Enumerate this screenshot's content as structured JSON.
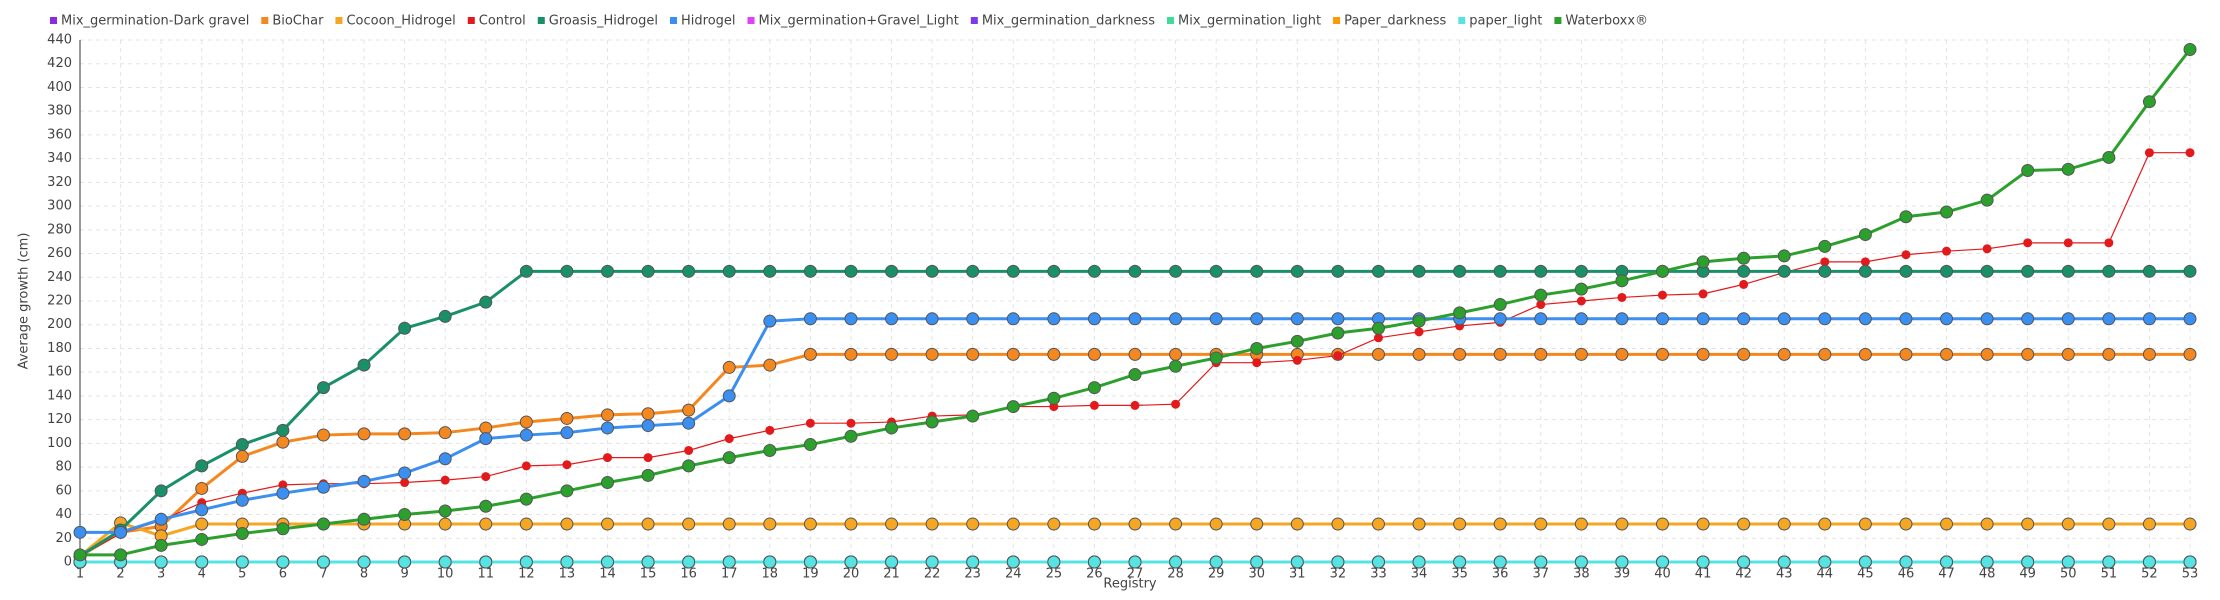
{
  "chart_data": {
    "type": "line",
    "xlabel": "Registry",
    "ylabel": "Average growth (cm)",
    "categories": [
      "1",
      "2",
      "3",
      "4",
      "5",
      "6",
      "7",
      "8",
      "9",
      "10",
      "11",
      "12",
      "13",
      "14",
      "15",
      "16",
      "17",
      "18",
      "19",
      "20",
      "21",
      "22",
      "23",
      "24",
      "25",
      "26",
      "27",
      "28",
      "29",
      "30",
      "31",
      "32",
      "33",
      "34",
      "35",
      "36",
      "37",
      "38",
      "39",
      "40",
      "41",
      "42",
      "43",
      "44",
      "45",
      "46",
      "47",
      "48",
      "49",
      "50",
      "51",
      "52",
      "53"
    ],
    "ylim": [
      0,
      440
    ],
    "yticks": [
      0,
      20,
      40,
      60,
      80,
      100,
      120,
      140,
      160,
      180,
      200,
      220,
      240,
      260,
      280,
      300,
      320,
      340,
      360,
      380,
      400,
      420,
      440
    ],
    "grid": true,
    "legend": "top",
    "series": [
      {
        "name": "Mix_germination-Dark gravel",
        "color": "#8a2be2",
        "values": [
          0,
          0,
          0,
          0,
          0,
          0,
          0,
          0,
          0,
          0,
          0,
          0,
          0,
          0,
          0,
          0,
          0,
          0,
          0,
          0,
          0,
          0,
          0,
          0,
          0,
          0,
          0,
          0,
          0,
          0,
          0,
          0,
          0,
          0,
          0,
          0,
          0,
          0,
          0,
          0,
          0,
          0,
          0,
          0,
          0,
          0,
          0,
          0,
          0,
          0,
          0,
          0,
          0
        ]
      },
      {
        "name": "BioChar",
        "color": "#f5871f",
        "values": [
          5,
          25,
          30,
          62,
          89,
          101,
          107,
          108,
          108,
          109,
          113,
          118,
          121,
          124,
          125,
          128,
          164,
          166,
          175,
          175,
          175,
          175,
          175,
          175,
          175,
          175,
          175,
          175,
          175,
          175,
          175,
          175,
          175,
          175,
          175,
          175,
          175,
          175,
          175,
          175,
          175,
          175,
          175,
          175,
          175,
          175,
          175,
          175,
          175,
          175,
          175,
          175,
          175
        ]
      },
      {
        "name": "Cocoon_Hidrogel",
        "color": "#f5a623",
        "values": [
          5,
          33,
          22,
          32,
          32,
          32,
          32,
          32,
          32,
          32,
          32,
          32,
          32,
          32,
          32,
          32,
          32,
          32,
          32,
          32,
          32,
          32,
          32,
          32,
          32,
          32,
          32,
          32,
          32,
          32,
          32,
          32,
          32,
          32,
          32,
          32,
          32,
          32,
          32,
          32,
          32,
          32,
          32,
          32,
          32,
          32,
          32,
          32,
          32,
          32,
          32,
          32,
          32
        ]
      },
      {
        "name": "Control",
        "color": "#e31a1c",
        "values": [
          5,
          24,
          35,
          50,
          58,
          65,
          66,
          66,
          67,
          69,
          72,
          81,
          82,
          88,
          88,
          94,
          104,
          111,
          117,
          117,
          118,
          123,
          124,
          131,
          131,
          132,
          132,
          133,
          168,
          168,
          170,
          174,
          189,
          194,
          199,
          202,
          217,
          220,
          223,
          225,
          226,
          234,
          244,
          253,
          253,
          259,
          262,
          264,
          269,
          269,
          269,
          345,
          345
        ]
      },
      {
        "name": "Groasis_Hidrogel",
        "color": "#1a9068",
        "values": [
          5,
          27,
          60,
          81,
          99,
          111,
          147,
          166,
          197,
          207,
          219,
          245,
          245,
          245,
          245,
          245,
          245,
          245,
          245,
          245,
          245,
          245,
          245,
          245,
          245,
          245,
          245,
          245,
          245,
          245,
          245,
          245,
          245,
          245,
          245,
          245,
          245,
          245,
          245,
          245,
          245,
          245,
          245,
          245,
          245,
          245,
          245,
          245,
          245,
          245,
          245,
          245,
          245
        ]
      },
      {
        "name": "Hidrogel",
        "color": "#3b8ff0",
        "values": [
          25,
          25,
          36,
          44,
          52,
          58,
          63,
          68,
          75,
          87,
          104,
          107,
          109,
          113,
          115,
          117,
          140,
          203,
          205,
          205,
          205,
          205,
          205,
          205,
          205,
          205,
          205,
          205,
          205,
          205,
          205,
          205,
          205,
          205,
          205,
          205,
          205,
          205,
          205,
          205,
          205,
          205,
          205,
          205,
          205,
          205,
          205,
          205,
          205,
          205,
          205,
          205,
          205
        ]
      },
      {
        "name": "Mix_germination+Gravel_Light",
        "color": "#e040fb",
        "values": [
          0,
          0,
          0,
          0,
          0,
          0,
          0,
          0,
          0,
          0,
          0,
          0,
          0,
          0,
          0,
          0,
          0,
          0,
          0,
          0,
          0,
          0,
          0,
          0,
          0,
          0,
          0,
          0,
          0,
          0,
          0,
          0,
          0,
          0,
          0,
          0,
          0,
          0,
          0,
          0,
          0,
          0,
          0,
          0,
          0,
          0,
          0,
          0,
          0,
          0,
          0,
          0,
          0
        ]
      },
      {
        "name": "Mix_germination_darkness",
        "color": "#7c3aed",
        "values": [
          0,
          0,
          0,
          0,
          0,
          0,
          0,
          0,
          0,
          0,
          0,
          0,
          0,
          0,
          0,
          0,
          0,
          0,
          0,
          0,
          0,
          0,
          0,
          0,
          0,
          0,
          0,
          0,
          0,
          0,
          0,
          0,
          0,
          0,
          0,
          0,
          0,
          0,
          0,
          0,
          0,
          0,
          0,
          0,
          0,
          0,
          0,
          0,
          0,
          0,
          0,
          0,
          0
        ]
      },
      {
        "name": "Mix_germination_light",
        "color": "#3ddc97",
        "values": [
          0,
          0,
          0,
          0,
          0,
          0,
          0,
          0,
          0,
          0,
          0,
          0,
          0,
          0,
          0,
          0,
          0,
          0,
          0,
          0,
          0,
          0,
          0,
          0,
          0,
          0,
          0,
          0,
          0,
          0,
          0,
          0,
          0,
          0,
          0,
          0,
          0,
          0,
          0,
          0,
          0,
          0,
          0,
          0,
          0,
          0,
          0,
          0,
          0,
          0,
          0,
          0,
          0
        ]
      },
      {
        "name": "Paper_darkness",
        "color": "#ff9900",
        "values": [
          0,
          0,
          0,
          0,
          0,
          0,
          0,
          0,
          0,
          0,
          0,
          0,
          0,
          0,
          0,
          0,
          0,
          0,
          0,
          0,
          0,
          0,
          0,
          0,
          0,
          0,
          0,
          0,
          0,
          0,
          0,
          0,
          0,
          0,
          0,
          0,
          0,
          0,
          0,
          0,
          0,
          0,
          0,
          0,
          0,
          0,
          0,
          0,
          0,
          0,
          0,
          0,
          0
        ]
      },
      {
        "name": "paper_light",
        "color": "#55e3e3",
        "values": [
          0,
          0,
          0,
          0,
          0,
          0,
          0,
          0,
          0,
          0,
          0,
          0,
          0,
          0,
          0,
          0,
          0,
          0,
          0,
          0,
          0,
          0,
          0,
          0,
          0,
          0,
          0,
          0,
          0,
          0,
          0,
          0,
          0,
          0,
          0,
          0,
          0,
          0,
          0,
          0,
          0,
          0,
          0,
          0,
          0,
          0,
          0,
          0,
          0,
          0,
          0,
          0,
          0
        ]
      },
      {
        "name": "Waterboxx®",
        "color": "#2ca02c",
        "values": [
          6,
          6,
          14,
          19,
          24,
          28,
          32,
          36,
          40,
          43,
          47,
          53,
          60,
          67,
          73,
          81,
          88,
          94,
          99,
          106,
          113,
          118,
          123,
          131,
          138,
          147,
          158,
          165,
          172,
          180,
          186,
          193,
          197,
          203,
          210,
          217,
          225,
          230,
          237,
          245,
          253,
          256,
          258,
          266,
          276,
          291,
          295,
          305,
          330,
          331,
          341,
          388,
          432
        ]
      }
    ]
  }
}
